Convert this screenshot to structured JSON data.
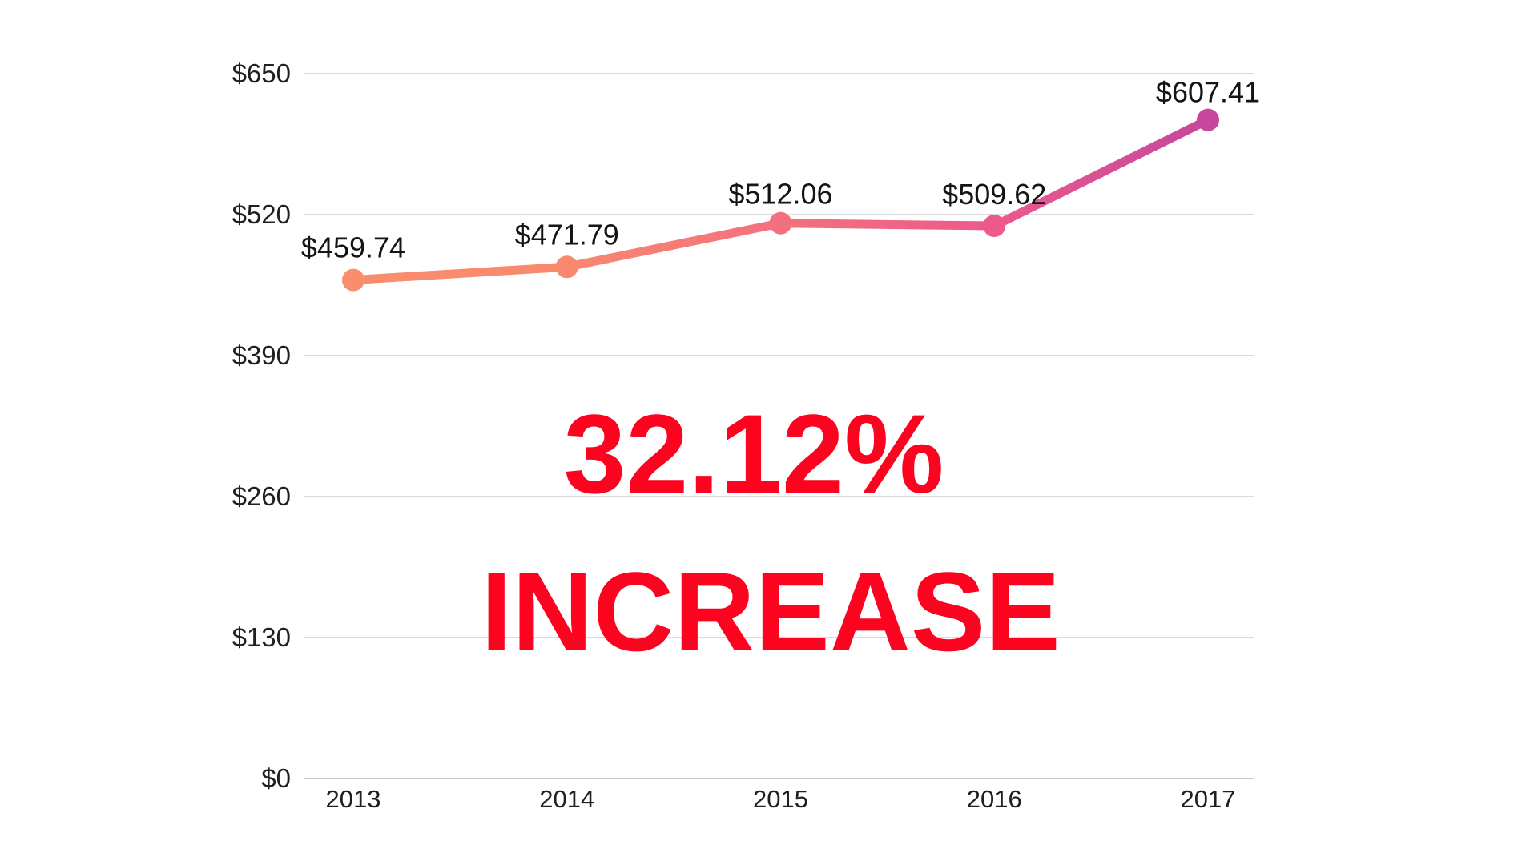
{
  "chart_data": {
    "type": "line",
    "x": [
      "2013",
      "2014",
      "2015",
      "2016",
      "2017"
    ],
    "series": [
      {
        "name": "value",
        "values": [
          459.74,
          471.79,
          512.06,
          509.62,
          607.41
        ]
      }
    ],
    "point_labels": [
      "$459.74",
      "$471.79",
      "$512.06",
      "$509.62",
      "$607.41"
    ],
    "yticks": {
      "values": [
        650,
        520,
        390,
        260,
        130,
        0
      ],
      "labels": [
        "$650",
        "$520",
        "$390",
        "$260",
        "$130",
        "$0"
      ]
    },
    "ylim": [
      0,
      650
    ],
    "title": "",
    "xlabel": "",
    "ylabel": "",
    "grid": "horizontal",
    "legend": "none",
    "point_colors": [
      "#F98E6D",
      "#F9886F",
      "#F4707E",
      "#EC5A8B",
      "#C6479D"
    ]
  },
  "annotation": {
    "line1": "32.12%",
    "line2": "INCREASE",
    "color": "#FC0320"
  },
  "colors": {
    "grid": "#DBDBDB",
    "baseline": "#C9C9C9",
    "axis_text": "#1F1F1F",
    "label_text": "#141414",
    "background": "#FFFFFF"
  }
}
